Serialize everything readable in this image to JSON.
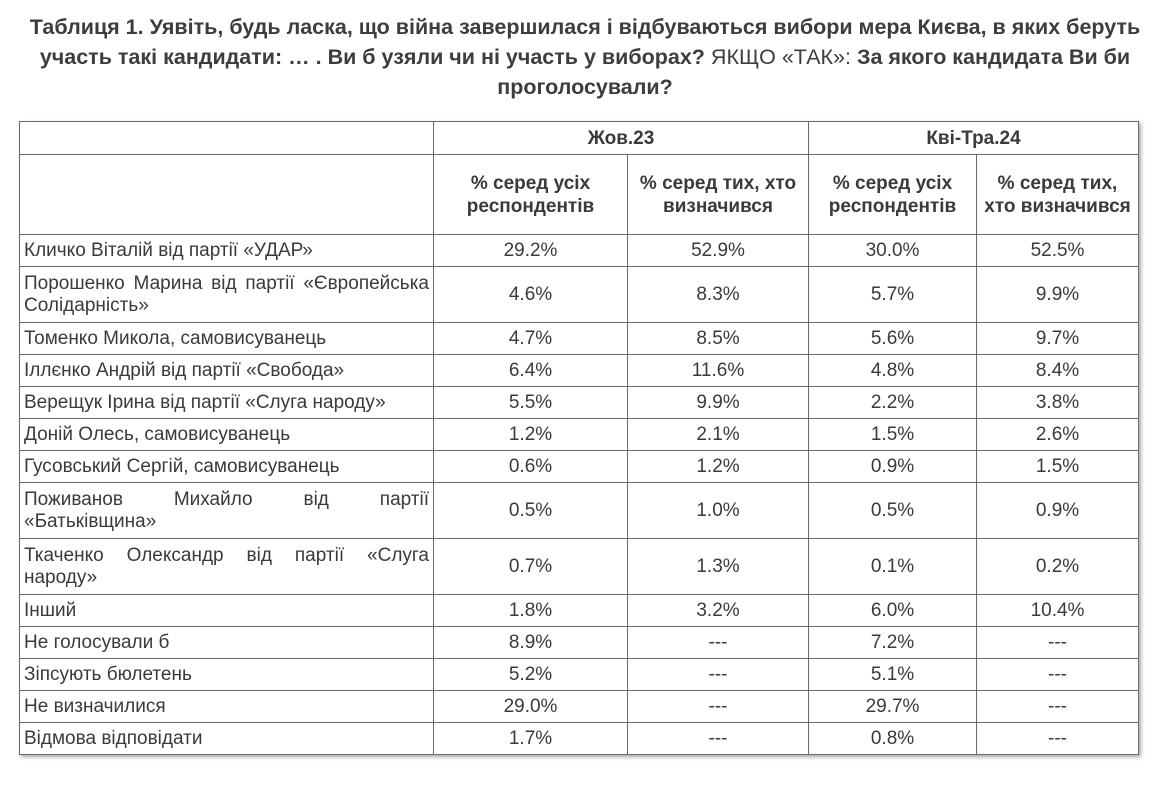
{
  "title": {
    "part1": "Таблиця 1. Уявіть, будь ласка, що війна завершилася і відбуваються вибори мера Києва, в яких беруть участь такі кандидати: … . Ви б узяли чи ні участь у виборах?",
    "part2": " ЯКЩО «ТАК»: ",
    "part3": "За якого кандидата Ви би проголосували?"
  },
  "table": {
    "periods": [
      "Жов.23",
      "Кві-Тра.24"
    ],
    "subheaders": [
      "% серед усіх респондентів",
      "% серед тих, хто визначився",
      "% серед усіх респондентів",
      "% серед тих, хто визначився"
    ],
    "rows": [
      {
        "name": "Кличко Віталій від партії «УДАР»",
        "values": [
          "29.2%",
          "52.9%",
          "30.0%",
          "52.5%"
        ]
      },
      {
        "name": "Порошенко Марина від партії «Європейська Солідарність»",
        "values": [
          "4.6%",
          "8.3%",
          "5.7%",
          "9.9%"
        ]
      },
      {
        "name": "Томенко Микола, самовисуванець",
        "values": [
          "4.7%",
          "8.5%",
          "5.6%",
          "9.7%"
        ]
      },
      {
        "name": "Іллєнко Андрій від партії «Свобода»",
        "values": [
          "6.4%",
          "11.6%",
          "4.8%",
          "8.4%"
        ]
      },
      {
        "name": "Верещук Ірина від партії «Слуга народу»",
        "values": [
          "5.5%",
          "9.9%",
          "2.2%",
          "3.8%"
        ]
      },
      {
        "name": "Доній Олесь, самовисуванець",
        "values": [
          "1.2%",
          "2.1%",
          "1.5%",
          "2.6%"
        ]
      },
      {
        "name": "Гусовський Сергій, самовисуванець",
        "values": [
          "0.6%",
          "1.2%",
          "0.9%",
          "1.5%"
        ]
      },
      {
        "name": "Поживанов Михайло від партії «Батьківщина»",
        "values": [
          "0.5%",
          "1.0%",
          "0.5%",
          "0.9%"
        ]
      },
      {
        "name": "Ткаченко Олександр від партії «Слуга народу»",
        "values": [
          "0.7%",
          "1.3%",
          "0.1%",
          "0.2%"
        ]
      },
      {
        "name": "Інший",
        "values": [
          "1.8%",
          "3.2%",
          "6.0%",
          "10.4%"
        ]
      },
      {
        "name": "Не голосували б",
        "values": [
          "8.9%",
          "---",
          "7.2%",
          "---"
        ]
      },
      {
        "name": "Зіпсують бюлетень",
        "values": [
          "5.2%",
          "---",
          "5.1%",
          "---"
        ]
      },
      {
        "name": "Не визначилися",
        "values": [
          "29.0%",
          "---",
          "29.7%",
          "---"
        ]
      },
      {
        "name": "Відмова відповідати",
        "values": [
          "1.7%",
          "---",
          "0.8%",
          "---"
        ]
      }
    ]
  }
}
